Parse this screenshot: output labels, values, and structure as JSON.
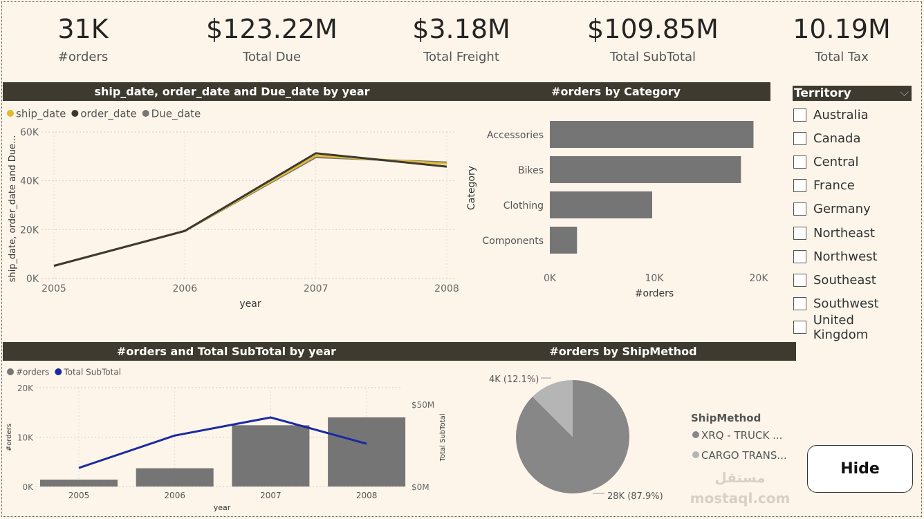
{
  "kpis": [
    {
      "value": "31K",
      "label": "#orders"
    },
    {
      "value": "$123.22M",
      "label": "Total Due"
    },
    {
      "value": "$3.18M",
      "label": "Total Freight"
    },
    {
      "value": "$109.85M",
      "label": "Total SubTotal"
    },
    {
      "value": "10.19M",
      "label": "Total Tax"
    }
  ],
  "slicer": {
    "title": "Territory",
    "items": [
      "Australia",
      "Canada",
      "Central",
      "France",
      "Germany",
      "Northeast",
      "Northwest",
      "Southeast",
      "Southwest",
      "United Kingdom"
    ]
  },
  "hide_button": "Hide",
  "watermark": "mostaql.com",
  "chart_data": [
    {
      "type": "line",
      "title": "ship_date, order_date and Due_date by year",
      "xlabel": "year",
      "ylabel": "ship_date, order_date and Due...",
      "categories": [
        "2005",
        "2006",
        "2007",
        "2008"
      ],
      "ylim": [
        0,
        60000
      ],
      "yticks": [
        "0K",
        "20K",
        "40K",
        "60K"
      ],
      "grid": true,
      "legend": "top-left",
      "series": [
        {
          "name": "ship_date",
          "color": "#e6b92e",
          "values": [
            5200,
            19500,
            50300,
            47000
          ]
        },
        {
          "name": "order_date",
          "color": "#3b3a30",
          "values": [
            5200,
            19500,
            51300,
            45800
          ]
        },
        {
          "name": "Due_date",
          "color": "#777777",
          "values": [
            5200,
            19500,
            49700,
            47500
          ]
        }
      ]
    },
    {
      "type": "bar",
      "orientation": "horizontal",
      "title": "#orders by Category",
      "xlabel": "#orders",
      "ylabel": "Category",
      "categories": [
        "Accessories",
        "Bikes",
        "Clothing",
        "Components"
      ],
      "values": [
        19500,
        18300,
        9800,
        2600
      ],
      "xlim": [
        0,
        20000
      ],
      "xticks": [
        "0K",
        "10K",
        "20K"
      ],
      "color": "#757575"
    },
    {
      "type": "bar+line",
      "title": "#orders and Total SubTotal by year",
      "xlabel": "year",
      "ylabel": "#orders",
      "y2label": "Total SubTotal",
      "categories": [
        "2005",
        "2006",
        "2007",
        "2008"
      ],
      "ylim": [
        0,
        20000
      ],
      "yticks": [
        "0K",
        "10K",
        "20K"
      ],
      "y2lim": [
        0,
        50000000
      ],
      "y2ticks": [
        "$0M",
        "$50M"
      ],
      "legend": "top-left",
      "series": [
        {
          "name": "#orders",
          "kind": "bar",
          "color": "#757575",
          "values": [
            1400,
            3700,
            12400,
            14000
          ]
        },
        {
          "name": "Total SubTotal",
          "kind": "line",
          "color": "#1a2aa0",
          "values": [
            11300000,
            31000000,
            42000000,
            26000000
          ]
        }
      ]
    },
    {
      "type": "pie",
      "title": "#orders by ShipMethod",
      "legend_title": "ShipMethod",
      "slices": [
        {
          "name": "XRQ - TRUCK ...",
          "value": 28000,
          "label": "28K (87.9%)",
          "color": "#878787"
        },
        {
          "name": "CARGO TRANS...",
          "value": 4000,
          "label": "4K (12.1%)",
          "color": "#b5b5b5"
        }
      ]
    }
  ]
}
